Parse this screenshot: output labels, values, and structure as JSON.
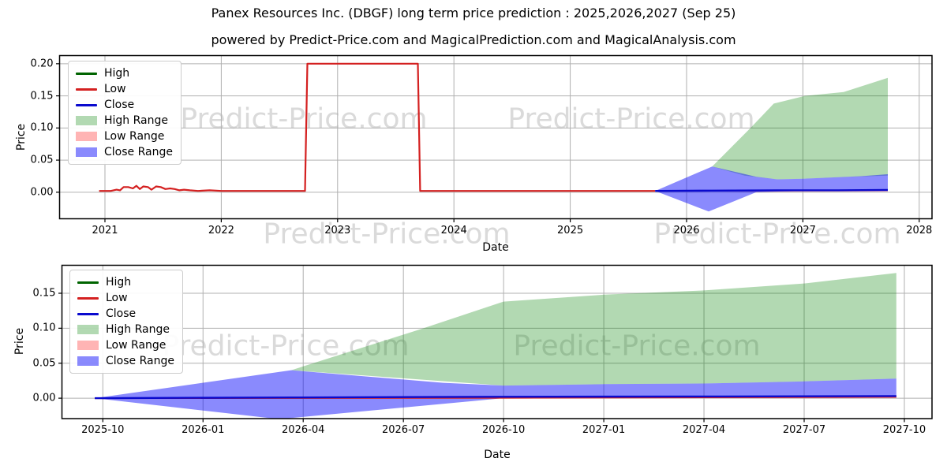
{
  "title": "Panex Resources Inc. (DBGF) long term price prediction : 2025,2026,2027 (Sep 25)",
  "subtitle": "powered by Predict-Price.com and MagicalPrediction.com and MagicalAnalysis.com",
  "watermark_text": "Predict-Price.com",
  "colors": {
    "high_line": "#006400",
    "low_line": "#d42020",
    "close_line": "#0a0ace",
    "high_range_fill": "rgba(0,128,0,0.30)",
    "low_range_fill": "rgba(255,40,40,0.35)",
    "close_range_fill": "rgba(10,10,250,0.48)",
    "grid": "#b0b0b0",
    "spine": "#000000"
  },
  "legend": {
    "items": [
      {
        "label": "High",
        "swatch": "line",
        "color": "#006400"
      },
      {
        "label": "Low",
        "swatch": "line",
        "color": "#d42020"
      },
      {
        "label": "Close",
        "swatch": "line",
        "color": "#0a0ace"
      },
      {
        "label": "High Range",
        "swatch": "patch",
        "color": "rgba(0,128,0,0.30)"
      },
      {
        "label": "Low Range",
        "swatch": "patch",
        "color": "rgba(255,40,40,0.35)"
      },
      {
        "label": "Close Range",
        "swatch": "patch",
        "color": "rgba(10,10,250,0.48)"
      }
    ]
  },
  "chart_data": [
    {
      "type": "line",
      "name": "long-term-history-and-prediction",
      "xlabel": "Date",
      "ylabel": "Price",
      "grid": true,
      "legend_position": "upper left",
      "xlim": [
        2020.61,
        2028.11
      ],
      "ylim": [
        -0.0413,
        0.2127
      ],
      "x_ticks": {
        "values": [
          2021,
          2022,
          2023,
          2024,
          2025,
          2026,
          2027,
          2028
        ],
        "labels": [
          "2021",
          "2022",
          "2023",
          "2024",
          "2025",
          "2026",
          "2027",
          "2028"
        ]
      },
      "y_ticks": {
        "values": [
          0.0,
          0.05,
          0.1,
          0.15,
          0.2
        ],
        "labels": [
          "0.00",
          "0.05",
          "0.10",
          "0.15",
          "0.20"
        ]
      },
      "bands": [
        {
          "name": "High Range",
          "color": "rgba(0,128,0,0.30)",
          "points": [
            [
              2026.22,
              0.04
            ],
            [
              2026.55,
              0.1
            ],
            [
              2026.75,
              0.138
            ],
            [
              2027.02,
              0.15
            ],
            [
              2027.35,
              0.156
            ],
            [
              2027.73,
              0.178
            ],
            [
              2027.73,
              0.026
            ],
            [
              2027.4,
              0.024
            ],
            [
              2027.0,
              0.021
            ],
            [
              2026.78,
              0.02
            ],
            [
              2026.5,
              0.026
            ],
            [
              2026.22,
              0.04
            ]
          ]
        },
        {
          "name": "Low Range",
          "color": "rgba(255,40,40,0.35)",
          "points": [
            [
              2025.73,
              0.002
            ],
            [
              2026.6,
              0.002
            ],
            [
              2027.73,
              0.003
            ],
            [
              2027.73,
              0.001
            ],
            [
              2026.6,
              0.0005
            ],
            [
              2025.73,
              0.002
            ]
          ]
        },
        {
          "name": "Close Range",
          "color": "rgba(10,10,250,0.48)",
          "points": [
            [
              2025.73,
              0.002
            ],
            [
              2026.22,
              0.04
            ],
            [
              2026.6,
              0.024
            ],
            [
              2026.78,
              0.02
            ],
            [
              2027.0,
              0.021
            ],
            [
              2027.25,
              0.023
            ],
            [
              2027.5,
              0.025
            ],
            [
              2027.73,
              0.028
            ],
            [
              2027.73,
              0.004
            ],
            [
              2027.4,
              0.003
            ],
            [
              2027.0,
              0.002
            ],
            [
              2026.78,
              0.001
            ],
            [
              2026.6,
              0.0
            ],
            [
              2026.19,
              -0.03
            ],
            [
              2025.73,
              0.002
            ]
          ]
        }
      ],
      "series": [
        {
          "name": "Low",
          "color": "#d42020",
          "width": 2.2,
          "points": [
            [
              2020.95,
              0.002
            ],
            [
              2021.05,
              0.002
            ],
            [
              2021.1,
              0.004
            ],
            [
              2021.13,
              0.003
            ],
            [
              2021.16,
              0.008
            ],
            [
              2021.2,
              0.008
            ],
            [
              2021.24,
              0.006
            ],
            [
              2021.27,
              0.01
            ],
            [
              2021.3,
              0.005
            ],
            [
              2021.33,
              0.009
            ],
            [
              2021.37,
              0.008
            ],
            [
              2021.4,
              0.004
            ],
            [
              2021.44,
              0.009
            ],
            [
              2021.48,
              0.008
            ],
            [
              2021.52,
              0.005
            ],
            [
              2021.56,
              0.006
            ],
            [
              2021.6,
              0.005
            ],
            [
              2021.64,
              0.003
            ],
            [
              2021.68,
              0.004
            ],
            [
              2021.73,
              0.003
            ],
            [
              2021.8,
              0.002
            ],
            [
              2021.9,
              0.003
            ],
            [
              2022.0,
              0.002
            ],
            [
              2022.3,
              0.002
            ],
            [
              2022.6,
              0.002
            ],
            [
              2022.72,
              0.002
            ],
            [
              2022.74,
              0.2
            ],
            [
              2023.69,
              0.2
            ],
            [
              2023.71,
              0.002
            ],
            [
              2024.2,
              0.002
            ],
            [
              2024.8,
              0.002
            ],
            [
              2025.3,
              0.002
            ],
            [
              2025.73,
              0.002
            ]
          ]
        },
        {
          "name": "Close",
          "color": "#0a0ace",
          "width": 2.4,
          "points": [
            [
              2025.73,
              0.002
            ],
            [
              2026.22,
              0.0025
            ],
            [
              2026.78,
              0.003
            ],
            [
              2027.3,
              0.003
            ],
            [
              2027.73,
              0.0035
            ]
          ]
        }
      ]
    },
    {
      "type": "line",
      "name": "prediction-zoom-2025-10-to-2027-10",
      "xlabel": "Date",
      "ylabel": "Price",
      "grid": true,
      "legend_position": "upper left",
      "xlim": [
        2025.648,
        2027.819
      ],
      "ylim": [
        -0.0292,
        0.19
      ],
      "x_ticks": {
        "values": [
          2025.75,
          2026.0,
          2026.25,
          2026.5,
          2026.75,
          2027.0,
          2027.25,
          2027.5,
          2027.75
        ],
        "labels": [
          "2025-10",
          "2026-01",
          "2026-04",
          "2026-07",
          "2026-10",
          "2027-01",
          "2027-04",
          "2027-07",
          "2027-10"
        ]
      },
      "y_ticks": {
        "values": [
          0.0,
          0.05,
          0.1,
          0.15
        ],
        "labels": [
          "0.00",
          "0.05",
          "0.10",
          "0.15"
        ]
      },
      "bands": [
        {
          "name": "High Range",
          "color": "rgba(0,128,0,0.30)",
          "points": [
            [
              2026.22,
              0.04
            ],
            [
              2026.55,
              0.1
            ],
            [
              2026.75,
              0.138
            ],
            [
              2027.0,
              0.148
            ],
            [
              2027.25,
              0.154
            ],
            [
              2027.5,
              0.164
            ],
            [
              2027.73,
              0.179
            ],
            [
              2027.73,
              0.028
            ],
            [
              2027.5,
              0.024
            ],
            [
              2027.25,
              0.021
            ],
            [
              2027.0,
              0.02
            ],
            [
              2026.75,
              0.018
            ],
            [
              2026.22,
              0.04
            ]
          ]
        },
        {
          "name": "Low Range",
          "color": "rgba(255,40,40,0.35)",
          "points": [
            [
              2025.73,
              0.0
            ],
            [
              2026.75,
              0.0015
            ],
            [
              2027.73,
              0.0025
            ],
            [
              2027.73,
              0.0
            ],
            [
              2026.75,
              -0.0005
            ],
            [
              2025.73,
              0.0
            ]
          ]
        },
        {
          "name": "Close Range",
          "color": "rgba(10,10,250,0.48)",
          "points": [
            [
              2025.73,
              0.0
            ],
            [
              2026.22,
              0.04
            ],
            [
              2026.6,
              0.022
            ],
            [
              2026.75,
              0.018
            ],
            [
              2027.0,
              0.02
            ],
            [
              2027.25,
              0.021
            ],
            [
              2027.5,
              0.024
            ],
            [
              2027.73,
              0.028
            ],
            [
              2027.73,
              0.003
            ],
            [
              2027.25,
              0.002
            ],
            [
              2027.0,
              0.001
            ],
            [
              2026.75,
              0.0
            ],
            [
              2026.19,
              -0.03
            ],
            [
              2025.73,
              0.0
            ]
          ]
        }
      ],
      "series": [
        {
          "name": "Low",
          "color": "#d42020",
          "width": 2.0,
          "points": [
            [
              2025.73,
              0.0
            ],
            [
              2026.75,
              0.0005
            ],
            [
              2027.73,
              0.002
            ]
          ]
        },
        {
          "name": "Close",
          "color": "#0a0ace",
          "width": 2.4,
          "points": [
            [
              2025.73,
              0.0
            ],
            [
              2026.22,
              0.001
            ],
            [
              2026.75,
              0.002
            ],
            [
              2027.3,
              0.0025
            ],
            [
              2027.73,
              0.003
            ]
          ]
        }
      ]
    }
  ]
}
